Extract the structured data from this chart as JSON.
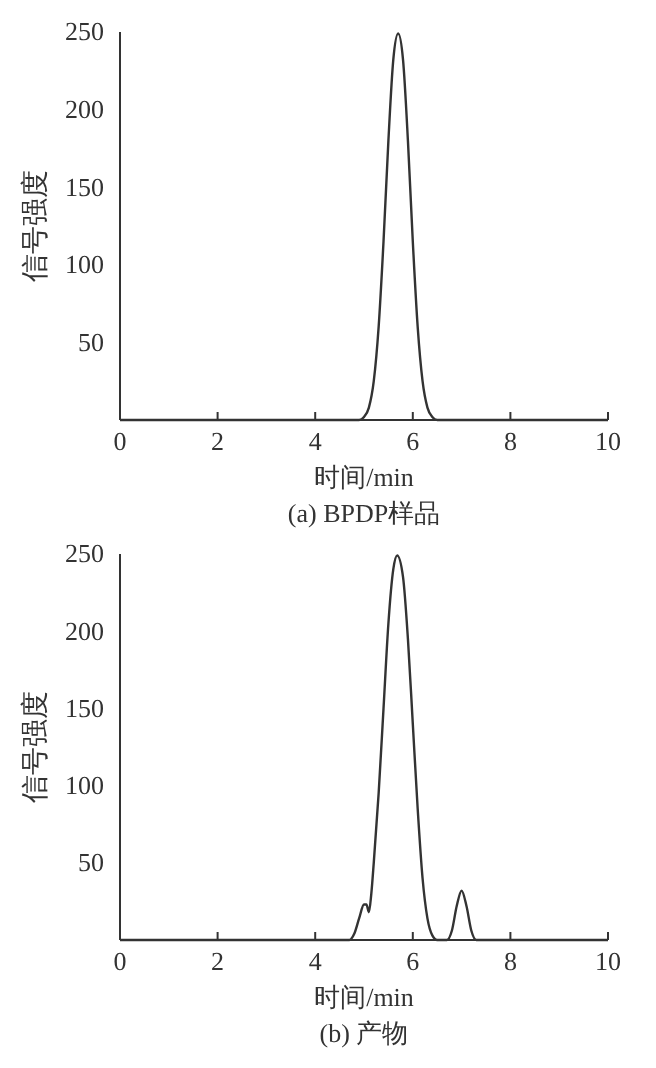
{
  "chart_data": [
    {
      "type": "line",
      "title": "(a) BPDP样品",
      "xlabel": "时间/min",
      "ylabel": "信号强度",
      "xlim": [
        0,
        10
      ],
      "ylim": [
        0,
        250
      ],
      "xticks": [
        0,
        2,
        4,
        6,
        8,
        10
      ],
      "yticks": [
        50,
        100,
        150,
        200,
        250
      ],
      "grid": false,
      "marker": "none",
      "line_style": "solid",
      "series": [
        {
          "color": "#333333",
          "x": [
            0,
            4.9,
            5.0,
            5.1,
            5.2,
            5.3,
            5.4,
            5.5,
            5.6,
            5.7,
            5.8,
            5.9,
            6.0,
            6.1,
            6.2,
            6.3,
            6.4,
            6.5,
            10
          ],
          "values": [
            0,
            0,
            2,
            8,
            25,
            60,
            115,
            180,
            232,
            249,
            232,
            180,
            115,
            60,
            25,
            8,
            2,
            0,
            0
          ]
        }
      ]
    },
    {
      "type": "line",
      "title": "(b) 产物",
      "xlabel": "时间/min",
      "ylabel": "信号强度",
      "xlim": [
        0,
        10
      ],
      "ylim": [
        0,
        250
      ],
      "xticks": [
        0,
        2,
        4,
        6,
        8,
        10
      ],
      "yticks": [
        50,
        100,
        150,
        200,
        250
      ],
      "grid": false,
      "marker": "none",
      "line_style": "solid",
      "series": [
        {
          "color": "#333333",
          "x": [
            0,
            4.7,
            4.8,
            4.9,
            5.0,
            5.05,
            5.1,
            5.15,
            5.2,
            5.3,
            5.4,
            5.5,
            5.6,
            5.68,
            5.8,
            5.9,
            6.0,
            6.1,
            6.2,
            6.3,
            6.4,
            6.5,
            6.7,
            6.8,
            6.9,
            7.0,
            7.1,
            7.2,
            7.3,
            10
          ],
          "values": [
            0,
            0,
            4,
            14,
            23,
            23,
            18,
            30,
            50,
            95,
            150,
            205,
            240,
            249,
            235,
            195,
            140,
            85,
            40,
            14,
            3,
            0,
            0,
            6,
            22,
            32,
            22,
            6,
            0,
            0
          ]
        }
      ]
    }
  ]
}
